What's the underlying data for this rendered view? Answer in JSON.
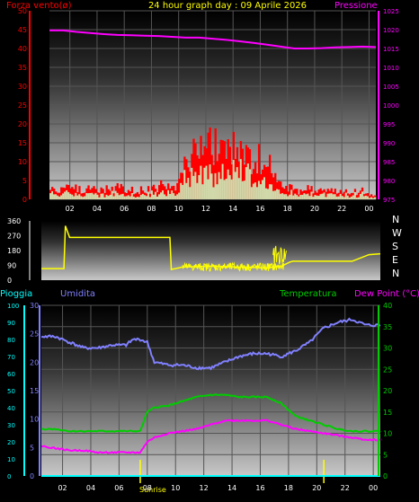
{
  "title": "24 hour graph day : 09 Aprile 2026",
  "colors": {
    "background": "#000000",
    "wind": "#ff0000",
    "wind_avg": "#c8ffc8",
    "pressure": "#ff00ff",
    "direction": "#ffff00",
    "rain": "#00ffff",
    "humidity": "#8080ff",
    "temperature": "#00cc00",
    "dewpoint": "#ff00ff",
    "sun_marker": "#ffff00"
  },
  "chart_data": [
    {
      "id": "wind_pressure",
      "type": "line",
      "left_label": "Forza vento(ø)",
      "right_label": "Pressione",
      "x_ticks": [
        "02",
        "04",
        "06",
        "08",
        "10",
        "12",
        "14",
        "16",
        "18",
        "20",
        "22",
        "00"
      ],
      "left_axis": {
        "ticks": [
          "0",
          "5",
          "10",
          "15",
          "20",
          "25",
          "30",
          "35",
          "40",
          "45",
          "50"
        ],
        "range": [
          0,
          50
        ]
      },
      "right_axis": {
        "ticks": [
          "975",
          "980",
          "985",
          "990",
          "995",
          "1000",
          "1005",
          "1010",
          "1015",
          "1020",
          "1025"
        ],
        "range": [
          975,
          1025
        ]
      },
      "x_range_hours": [
        0,
        24
      ],
      "grid": true,
      "series": [
        {
          "name": "Pressione",
          "x": [
            0,
            1,
            2,
            3,
            4,
            5,
            6,
            7,
            8,
            9,
            10,
            11,
            12,
            13,
            14,
            15,
            16,
            17,
            18,
            19,
            20,
            21,
            22,
            23,
            24
          ],
          "values": [
            1019.8,
            1019.8,
            1019.4,
            1019.1,
            1018.8,
            1018.6,
            1018.5,
            1018.4,
            1018.3,
            1018.1,
            1017.9,
            1017.9,
            1017.6,
            1017.3,
            1016.9,
            1016.5,
            1016.0,
            1015.5,
            1015.0,
            1015.0,
            1015.1,
            1015.3,
            1015.4,
            1015.5,
            1015.4
          ]
        },
        {
          "name": "Forza vento",
          "x": [
            0,
            1,
            2,
            3,
            4,
            5,
            6,
            7,
            8,
            9,
            10,
            11,
            12,
            13,
            14,
            15,
            16,
            17,
            18,
            19,
            20,
            21,
            22,
            23,
            24
          ],
          "values": [
            2,
            3,
            2,
            3,
            2,
            3,
            2,
            2,
            3,
            2,
            8,
            12,
            13,
            12,
            11,
            10,
            9,
            3,
            2,
            2,
            2,
            2,
            1,
            2,
            1
          ]
        }
      ]
    },
    {
      "id": "wind_direction",
      "type": "line",
      "left_axis": {
        "ticks": [
          "0",
          "90",
          "180",
          "270",
          "360"
        ],
        "range": [
          0,
          360
        ]
      },
      "right_labels": [
        "N",
        "W",
        "S",
        "E",
        "N"
      ],
      "x_range_hours": [
        0,
        24
      ],
      "series": [
        {
          "name": "Direzione",
          "x": [
            0,
            1.6,
            1.7,
            2,
            6,
            8,
            9.1,
            9.2,
            10,
            12,
            14,
            16,
            17,
            17.6,
            17.8,
            20,
            22,
            23.2,
            24
          ],
          "values": [
            70,
            70,
            330,
            260,
            260,
            260,
            260,
            65,
            80,
            85,
            80,
            75,
            85,
            110,
            115,
            115,
            115,
            155,
            160
          ]
        }
      ]
    },
    {
      "id": "rain_hum_temp",
      "type": "line",
      "labels": {
        "pioggia": "Pioggia",
        "umidita": "Umidita",
        "temperatura": "Temperatura",
        "dewpoint": "Dew Point (°C)"
      },
      "x_ticks": [
        "02",
        "04",
        "06",
        "08",
        "10",
        "12",
        "14",
        "16",
        "18",
        "20",
        "22",
        "00"
      ],
      "axis_rain": {
        "ticks": [
          "0",
          "10",
          "20",
          "30",
          "40",
          "50",
          "60",
          "70",
          "80",
          "90",
          "100"
        ],
        "range": [
          0,
          100
        ]
      },
      "axis_hum": {
        "ticks": [
          "0",
          "5",
          "10",
          "15",
          "20",
          "25",
          "30"
        ],
        "range": [
          0,
          30
        ]
      },
      "axis_temp": {
        "ticks": [
          "0",
          "5",
          "10",
          "15",
          "20",
          "25",
          "30",
          "35",
          "40"
        ],
        "range": [
          0,
          40
        ]
      },
      "x_range_hours": [
        0,
        24
      ],
      "grid": true,
      "sunrise_label": "Sunrise",
      "sunset_label": "",
      "sunrise_hour": 7.0,
      "sunset_hour": 20.0,
      "series": [
        {
          "name": "Umidita",
          "axis": "hum",
          "x": [
            0,
            1,
            2,
            3,
            4,
            5,
            6,
            6.5,
            7,
            7.5,
            8,
            9,
            10,
            11,
            12,
            13,
            14,
            15,
            16,
            17,
            18,
            19,
            20,
            21,
            22,
            23,
            24
          ],
          "values": [
            24.5,
            24.5,
            23.5,
            22.5,
            22.5,
            23,
            23,
            24,
            24,
            23.5,
            20,
            19.5,
            19.5,
            19,
            19,
            20,
            21,
            21.5,
            21.5,
            21,
            22,
            23.5,
            26,
            27,
            27.5,
            26.5,
            26.5
          ]
        },
        {
          "name": "Temperatura",
          "axis": "temp",
          "x": [
            0,
            1,
            2,
            3,
            4,
            5,
            6,
            7,
            7.5,
            8,
            9,
            10,
            11,
            12,
            13,
            14,
            15,
            16,
            17,
            18,
            19,
            20,
            21,
            22,
            23,
            24
          ],
          "values": [
            11,
            11,
            10.5,
            10.5,
            10.5,
            10.5,
            10.5,
            10.5,
            15,
            16,
            16.5,
            17.5,
            18.5,
            19,
            19,
            18.5,
            18.5,
            18.5,
            17,
            14,
            13,
            12,
            11,
            10.5,
            10.5,
            10.5
          ]
        },
        {
          "name": "Dew Point",
          "axis": "temp",
          "x": [
            0,
            1,
            2,
            3,
            4,
            5,
            6,
            7,
            7.5,
            8,
            9,
            10,
            11,
            12,
            13,
            14,
            15,
            16,
            17,
            18,
            19,
            20,
            21,
            22,
            23,
            24
          ],
          "values": [
            7,
            6.5,
            6,
            6,
            5.5,
            5.5,
            5.5,
            5.5,
            8,
            9,
            10,
            10.5,
            11,
            12,
            13,
            13,
            13,
            13,
            12,
            11,
            10.5,
            10,
            9.5,
            9,
            8.5,
            8.5
          ]
        },
        {
          "name": "Pioggia",
          "axis": "rain",
          "x": [
            0,
            24
          ],
          "values": [
            0,
            0
          ]
        }
      ]
    }
  ]
}
